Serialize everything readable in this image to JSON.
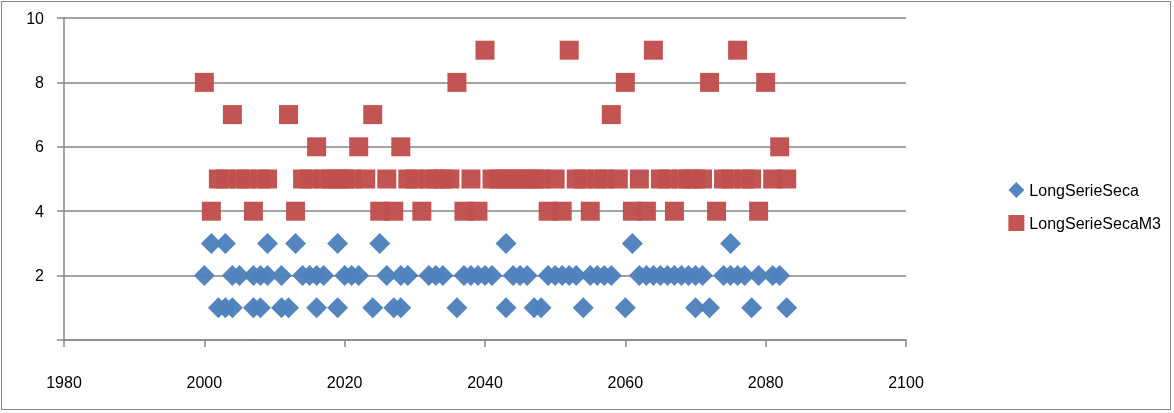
{
  "chart_data": {
    "type": "scatter",
    "xlim": [
      1980,
      2100
    ],
    "xticks": [
      1980,
      2000,
      2020,
      2040,
      2060,
      2080,
      2100
    ],
    "ylim": [
      0,
      10
    ],
    "yticks": [
      {
        "value": 0,
        "label": null
      },
      2,
      4,
      6,
      8,
      10
    ],
    "grid": "y",
    "legend": "right",
    "series": [
      {
        "name": "LongSerieSeca",
        "color": "#4f81bd",
        "marker": "diamond",
        "x": [
          2000,
          2001,
          2002,
          2003,
          2003,
          2004,
          2004,
          2005,
          2007,
          2007,
          2008,
          2008,
          2009,
          2009,
          2011,
          2011,
          2012,
          2013,
          2014,
          2015,
          2016,
          2016,
          2017,
          2019,
          2019,
          2020,
          2021,
          2022,
          2024,
          2025,
          2026,
          2027,
          2028,
          2028,
          2029,
          2032,
          2033,
          2034,
          2036,
          2037,
          2038,
          2039,
          2040,
          2041,
          2043,
          2043,
          2044,
          2045,
          2046,
          2047,
          2048,
          2049,
          2050,
          2051,
          2052,
          2053,
          2054,
          2055,
          2056,
          2057,
          2058,
          2060,
          2061,
          2062,
          2063,
          2064,
          2065,
          2066,
          2067,
          2068,
          2069,
          2070,
          2070,
          2071,
          2072,
          2074,
          2075,
          2075,
          2076,
          2077,
          2078,
          2079,
          2081,
          2082,
          2083
        ],
        "values": [
          2,
          3,
          1,
          1,
          3,
          1,
          2,
          2,
          1,
          2,
          1,
          2,
          2,
          3,
          1,
          2,
          1,
          3,
          2,
          2,
          1,
          2,
          2,
          1,
          3,
          2,
          2,
          2,
          1,
          3,
          2,
          1,
          1,
          2,
          2,
          2,
          2,
          2,
          1,
          2,
          2,
          2,
          2,
          2,
          1,
          3,
          2,
          2,
          2,
          1,
          1,
          2,
          2,
          2,
          2,
          2,
          1,
          2,
          2,
          2,
          2,
          1,
          3,
          2,
          2,
          2,
          2,
          2,
          2,
          2,
          2,
          1,
          2,
          2,
          1,
          2,
          2,
          3,
          2,
          2,
          1,
          2,
          2,
          2,
          1
        ]
      },
      {
        "name": "LongSerieSecaM3",
        "color": "#c0504d",
        "marker": "square",
        "x": [
          2000,
          2001,
          2002,
          2003,
          2004,
          2005,
          2006,
          2007,
          2008,
          2009,
          2012,
          2013,
          2014,
          2015,
          2016,
          2017,
          2018,
          2019,
          2020,
          2021,
          2022,
          2023,
          2024,
          2025,
          2026,
          2027,
          2028,
          2029,
          2030,
          2031,
          2032,
          2033,
          2034,
          2035,
          2036,
          2037,
          2038,
          2039,
          2040,
          2041,
          2042,
          2043,
          2044,
          2045,
          2046,
          2047,
          2048,
          2049,
          2050,
          2051,
          2052,
          2053,
          2054,
          2055,
          2056,
          2057,
          2058,
          2059,
          2060,
          2061,
          2062,
          2063,
          2064,
          2065,
          2066,
          2067,
          2068,
          2069,
          2070,
          2071,
          2072,
          2073,
          2074,
          2075,
          2076,
          2077,
          2078,
          2079,
          2080,
          2081,
          2082,
          2083
        ],
        "values": [
          8,
          4,
          5,
          5,
          7,
          5,
          5,
          4,
          5,
          5,
          7,
          4,
          5,
          5,
          6,
          5,
          5,
          5,
          5,
          5,
          6,
          5,
          7,
          4,
          5,
          4,
          6,
          5,
          5,
          4,
          5,
          5,
          5,
          5,
          8,
          4,
          5,
          4,
          9,
          5,
          5,
          5,
          5,
          5,
          5,
          5,
          5,
          4,
          5,
          4,
          9,
          5,
          5,
          4,
          5,
          5,
          7,
          5,
          8,
          4,
          5,
          4,
          9,
          5,
          5,
          4,
          5,
          5,
          5,
          5,
          8,
          4,
          5,
          5,
          9,
          5,
          5,
          4,
          8,
          5,
          6,
          5
        ]
      }
    ]
  }
}
